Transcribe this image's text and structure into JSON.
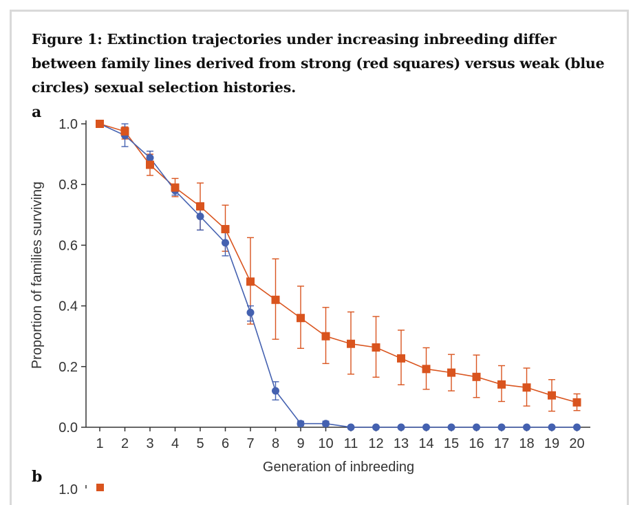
{
  "caption": "Figure 1: Extinction trajectories under increasing inbreeding differ between family lines derived from strong (red squares) versus weak (blue circles) sexual selection histories.",
  "panel_labels": {
    "a": "a",
    "b": "b"
  },
  "panel_b_tick_fragment": "1.0",
  "colors": {
    "strong": "#d9541e",
    "weak": "#4461b0",
    "axis": "#333333"
  },
  "chart_data": {
    "type": "line",
    "xlabel": "Generation of inbreeding",
    "ylabel": "Proportion of families surviving",
    "xlim": [
      1,
      20
    ],
    "ylim": [
      0,
      1.0
    ],
    "yticks": [
      "0.0",
      "0.2",
      "0.4",
      "0.6",
      "0.8",
      "1.0"
    ],
    "x": [
      1,
      2,
      3,
      4,
      5,
      6,
      7,
      8,
      9,
      10,
      11,
      12,
      13,
      14,
      15,
      16,
      17,
      18,
      19,
      20
    ],
    "series": [
      {
        "marker": "square",
        "color": "#d9541e",
        "values": [
          1.0,
          0.975,
          0.865,
          0.79,
          0.728,
          0.653,
          0.48,
          0.42,
          0.36,
          0.3,
          0.275,
          0.263,
          0.227,
          0.192,
          0.18,
          0.166,
          0.141,
          0.131,
          0.105,
          0.082
        ],
        "err_low": [
          1.0,
          0.95,
          0.83,
          0.76,
          0.65,
          0.58,
          0.34,
          0.29,
          0.26,
          0.21,
          0.175,
          0.165,
          0.14,
          0.125,
          0.12,
          0.098,
          0.085,
          0.07,
          0.053,
          0.055
        ],
        "err_high": [
          1.0,
          0.99,
          0.9,
          0.82,
          0.805,
          0.732,
          0.625,
          0.555,
          0.465,
          0.395,
          0.38,
          0.365,
          0.32,
          0.262,
          0.24,
          0.238,
          0.203,
          0.195,
          0.157,
          0.11
        ]
      },
      {
        "marker": "circle",
        "color": "#4461b0",
        "values": [
          1.0,
          0.962,
          0.888,
          0.78,
          0.695,
          0.608,
          0.378,
          0.12,
          0.012,
          0.012,
          0.0,
          0.0,
          0.0,
          0.0,
          0.0,
          0.0,
          0.0,
          0.0,
          0.0,
          0.0
        ],
        "err_low": [
          1.0,
          0.925,
          0.86,
          0.765,
          0.65,
          0.565,
          0.35,
          0.09,
          0.005,
          0.005,
          0.0,
          0.0,
          0.0,
          0.0,
          0.0,
          0.0,
          0.0,
          0.0,
          0.0,
          0.0
        ],
        "err_high": [
          1.0,
          1.0,
          0.91,
          0.795,
          0.74,
          0.655,
          0.4,
          0.15,
          0.02,
          0.02,
          0.0,
          0.0,
          0.0,
          0.0,
          0.0,
          0.0,
          0.0,
          0.0,
          0.0,
          0.0
        ]
      }
    ]
  }
}
